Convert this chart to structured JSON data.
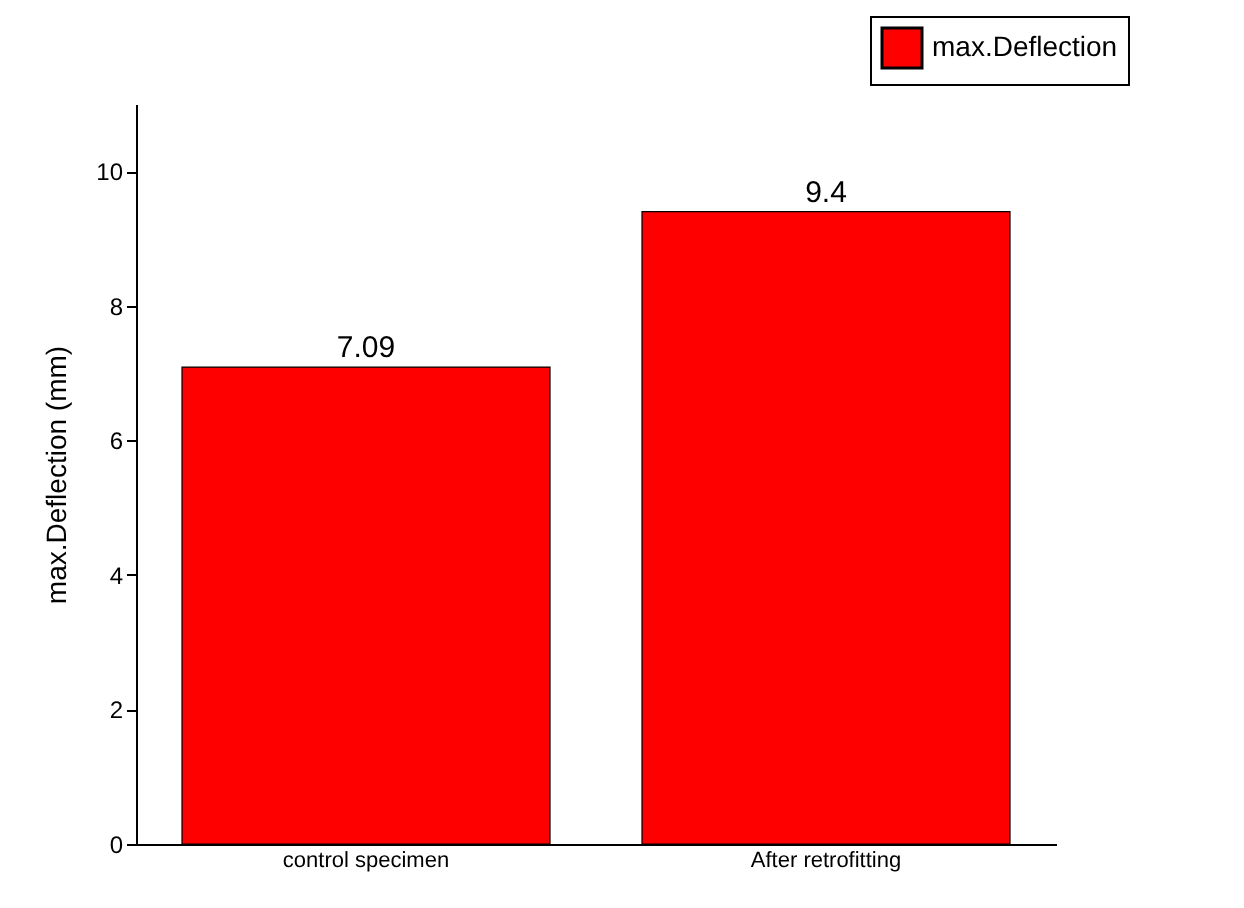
{
  "chart_data": {
    "type": "bar",
    "ylabel": "max.Deflection (mm)",
    "categories": [
      "control specimen",
      "After retrofitting"
    ],
    "series": [
      {
        "name": "max.Deflection",
        "color": "#ff0000",
        "values": [
          7.09,
          9.4
        ]
      }
    ],
    "ylim": [
      0,
      11
    ],
    "yticks": [
      0,
      2,
      4,
      6,
      8,
      10
    ],
    "data_labels": true,
    "legend": "top right",
    "grid": false
  }
}
